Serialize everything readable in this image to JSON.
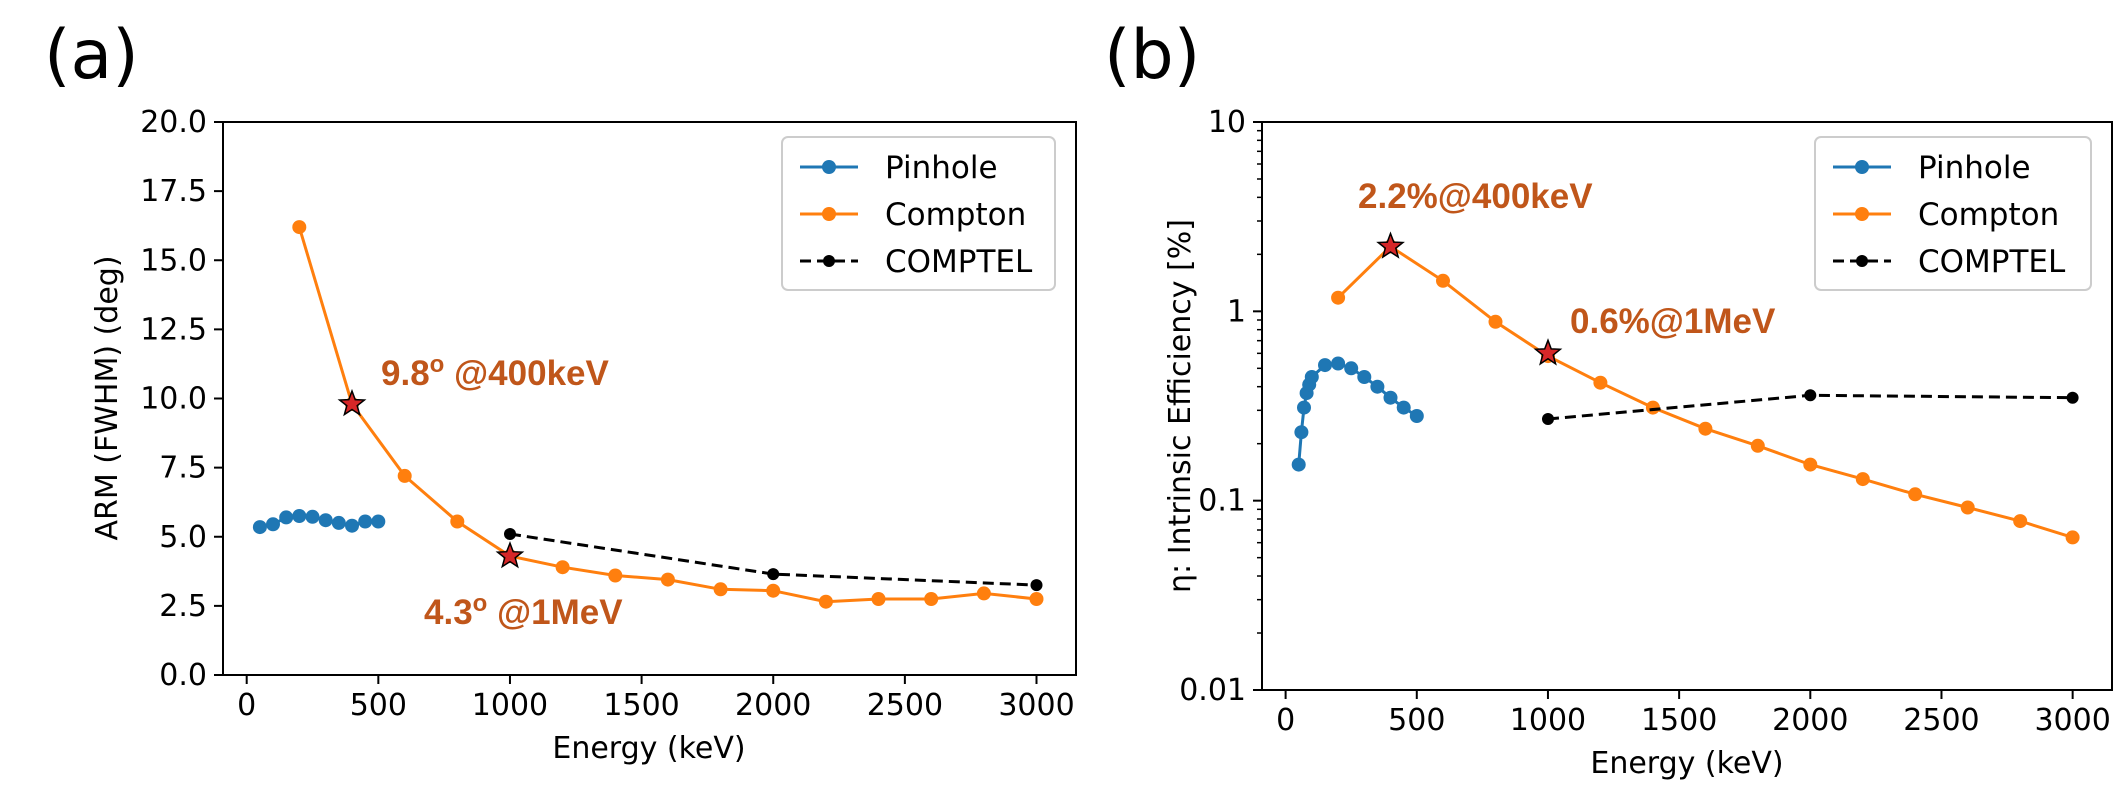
{
  "colors": {
    "pinhole": "#1f77b4",
    "compton": "#ff7f0e",
    "comptel": "#000000",
    "star": "#d62728",
    "annotation": "#C0561A"
  },
  "chart_data": [
    {
      "panel": "(a)",
      "type": "line",
      "xlabel": "Energy (keV)",
      "ylabel": "ARM (FWHM)  (deg)",
      "xlim": [
        -90,
        3150
      ],
      "ylim": [
        0,
        20
      ],
      "xticks": [
        0,
        500,
        1000,
        1500,
        2000,
        2500,
        3000
      ],
      "xtick_labels": [
        "0",
        "500",
        "1000",
        "1500",
        "2000",
        "2500",
        "3000"
      ],
      "yticks": [
        0,
        2.5,
        5,
        7.5,
        10,
        12.5,
        15,
        17.5,
        20
      ],
      "ytick_labels": [
        "0.0",
        "2.5",
        "5.0",
        "7.5",
        "10.0",
        "12.5",
        "15.0",
        "17.5",
        "20.0"
      ],
      "yscale": "linear",
      "legend": "top-right",
      "series": [
        {
          "name": "Pinhole",
          "style": "solid",
          "x": [
            50,
            100,
            150,
            200,
            250,
            300,
            350,
            400,
            450,
            500
          ],
          "y": [
            5.35,
            5.45,
            5.7,
            5.75,
            5.72,
            5.6,
            5.5,
            5.4,
            5.55,
            5.55
          ]
        },
        {
          "name": "Compton",
          "style": "solid",
          "x": [
            200,
            400,
            600,
            800,
            1000,
            1200,
            1400,
            1600,
            1800,
            2000,
            2200,
            2400,
            2600,
            2800,
            3000
          ],
          "y": [
            16.2,
            9.8,
            7.2,
            5.55,
            4.3,
            3.9,
            3.6,
            3.45,
            3.1,
            3.05,
            2.65,
            2.75,
            2.75,
            2.95,
            2.75
          ]
        },
        {
          "name": "COMPTEL",
          "style": "dashed",
          "x": [
            1000,
            2000,
            3000
          ],
          "y": [
            5.1,
            3.65,
            3.25
          ]
        }
      ],
      "stars": [
        {
          "x": 400,
          "y": 9.8
        },
        {
          "x": 1000,
          "y": 4.3
        }
      ],
      "annotations": [
        {
          "main": "9.8",
          "sup": "o",
          "rest": " @400keV"
        },
        {
          "main": "4.3",
          "sup": "o",
          "rest": " @1MeV"
        }
      ]
    },
    {
      "panel": "(b)",
      "type": "line",
      "xlabel": "Energy (keV)",
      "ylabel": "η: Intrinsic Efficiency [%]",
      "xlim": [
        -90,
        3150
      ],
      "ylim": [
        0.01,
        10
      ],
      "xticks": [
        0,
        500,
        1000,
        1500,
        2000,
        2500,
        3000
      ],
      "xtick_labels": [
        "0",
        "500",
        "1000",
        "1500",
        "2000",
        "2500",
        "3000"
      ],
      "yticks": [
        0.01,
        0.1,
        1,
        10
      ],
      "ytick_labels": [
        "0.01",
        "0.1",
        "1",
        "10"
      ],
      "yscale": "log",
      "legend": "top-right",
      "series": [
        {
          "name": "Pinhole",
          "style": "solid",
          "x": [
            50,
            60,
            70,
            80,
            90,
            100,
            150,
            200,
            250,
            300,
            350,
            400,
            450,
            500
          ],
          "y": [
            0.155,
            0.23,
            0.31,
            0.37,
            0.41,
            0.45,
            0.52,
            0.53,
            0.5,
            0.45,
            0.4,
            0.35,
            0.31,
            0.28
          ]
        },
        {
          "name": "Compton",
          "style": "solid",
          "x": [
            200,
            400,
            600,
            800,
            1000,
            1200,
            1400,
            1600,
            1800,
            2000,
            2200,
            2400,
            2600,
            2800,
            3000
          ],
          "y": [
            1.18,
            2.2,
            1.45,
            0.88,
            0.58,
            0.42,
            0.31,
            0.24,
            0.195,
            0.155,
            0.13,
            0.108,
            0.092,
            0.078,
            0.064
          ]
        },
        {
          "name": "COMPTEL",
          "style": "dashed",
          "x": [
            1000,
            2000,
            3000
          ],
          "y": [
            0.27,
            0.36,
            0.35
          ]
        }
      ],
      "stars": [
        {
          "x": 400,
          "y": 2.2
        },
        {
          "x": 1000,
          "y": 0.6
        }
      ],
      "annotations": [
        {
          "main": "2.2%@400keV",
          "sup": "",
          "rest": ""
        },
        {
          "main": "0.6%@1MeV",
          "sup": "",
          "rest": ""
        }
      ]
    }
  ]
}
